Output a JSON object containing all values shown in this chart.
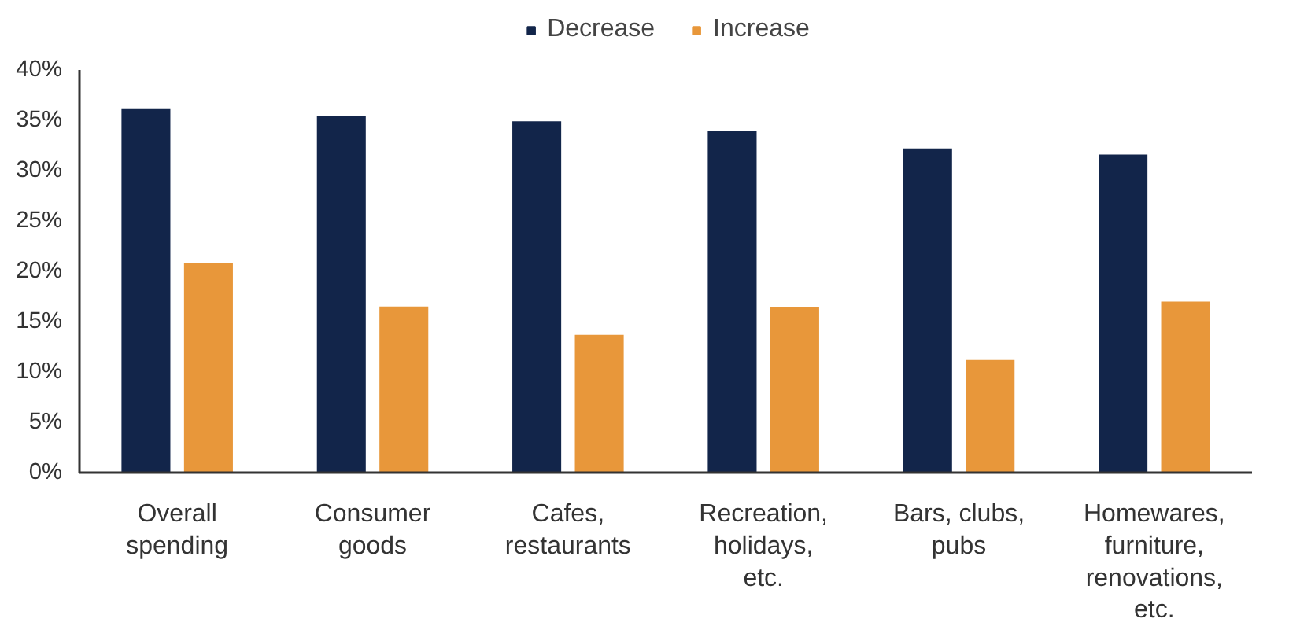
{
  "chart_data": {
    "type": "bar",
    "categories": [
      "Overall spending",
      "Consumer goods",
      "Cafes, restaurants",
      "Recreation, holidays, etc.",
      "Bars, clubs, pubs",
      "Homewares, furniture, renovations, etc."
    ],
    "series": [
      {
        "name": "Decrease",
        "color": "#12254a",
        "values": [
          36.2,
          35.4,
          34.9,
          33.9,
          32.2,
          31.6
        ]
      },
      {
        "name": "Increase",
        "color": "#e8973a",
        "values": [
          20.8,
          16.5,
          13.7,
          16.4,
          11.2,
          17.0
        ]
      }
    ],
    "ylim": [
      0,
      40
    ],
    "yticks": [
      {
        "value": 0,
        "label": "0%"
      },
      {
        "value": 5,
        "label": "5%"
      },
      {
        "value": 10,
        "label": "10%"
      },
      {
        "value": 15,
        "label": "15%"
      },
      {
        "value": 20,
        "label": "20%"
      },
      {
        "value": 25,
        "label": "25%"
      },
      {
        "value": 30,
        "label": "30%"
      },
      {
        "value": 35,
        "label": "35%"
      },
      {
        "value": 40,
        "label": "40%"
      }
    ],
    "grid": false,
    "legend": "top"
  }
}
